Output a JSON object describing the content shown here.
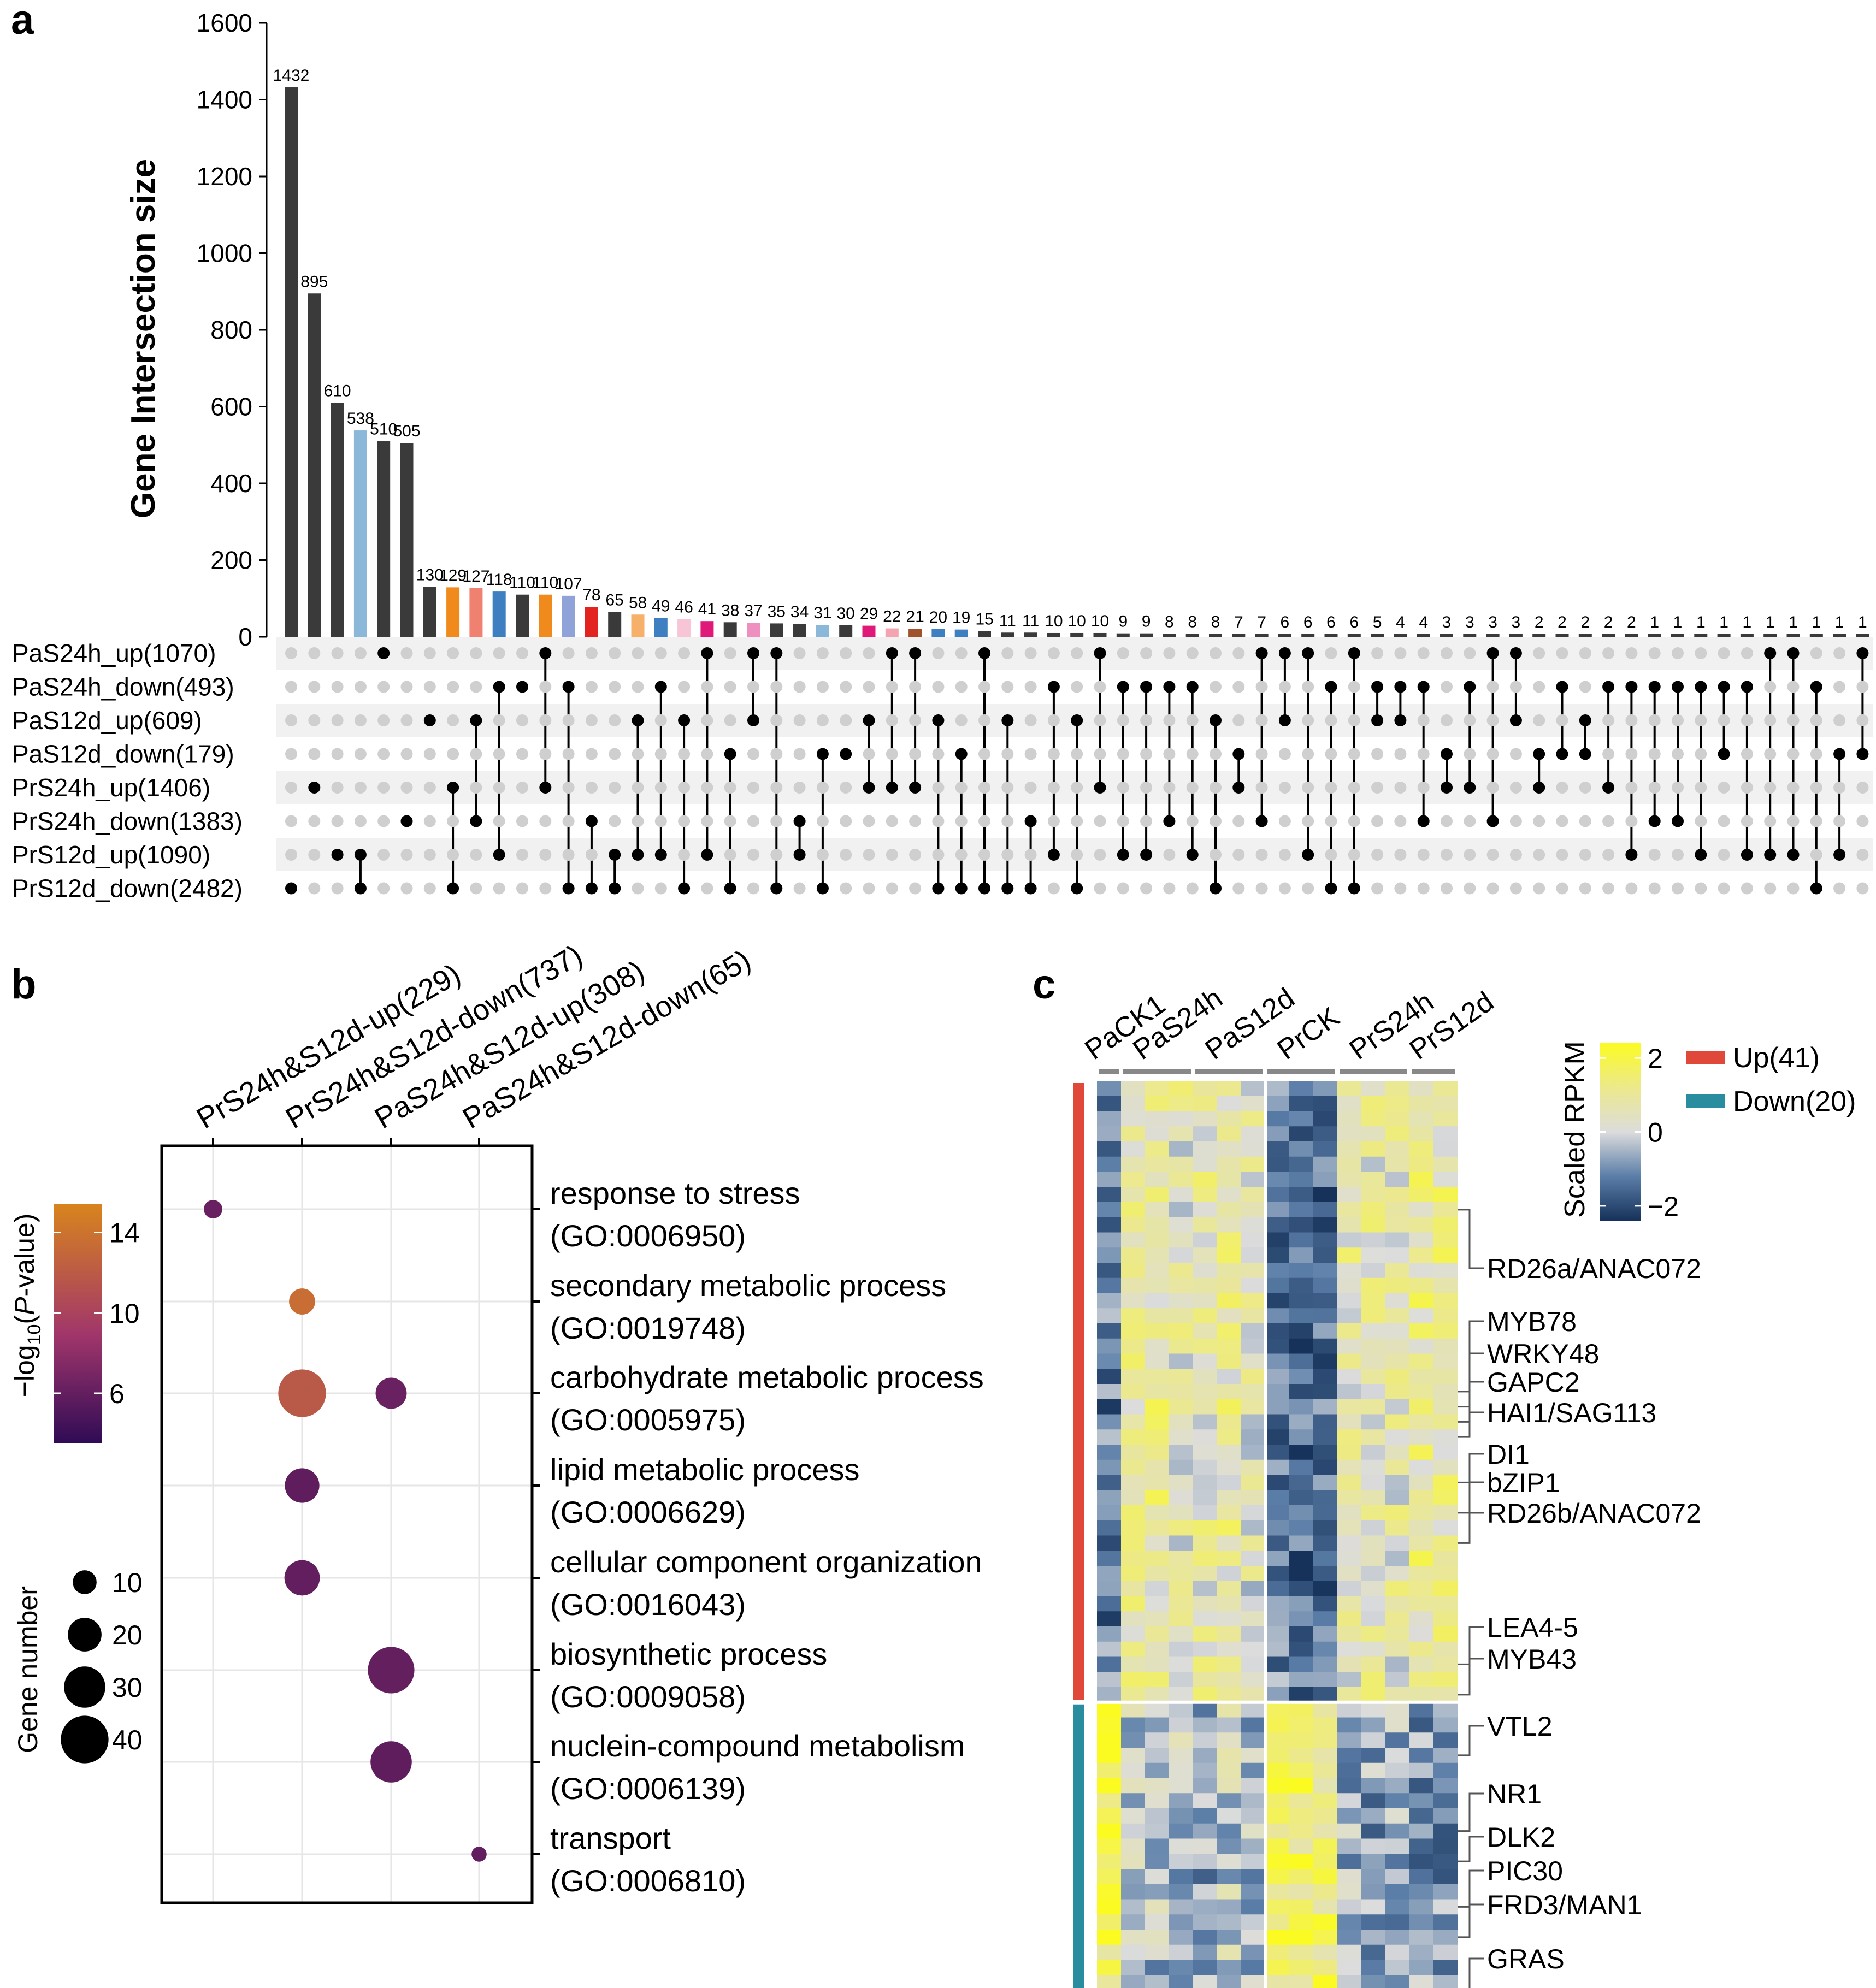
{
  "panels": {
    "a": "a",
    "b": "b",
    "c": "c"
  },
  "chart_data": [
    {
      "type": "bar",
      "subtype": "upset",
      "ylabel": "Gene Intersection size",
      "ylim": [
        0,
        1600
      ],
      "yticks": [
        0,
        200,
        400,
        600,
        800,
        1000,
        1200,
        1400,
        1600
      ],
      "sets": [
        "PaS24h_up(1070)",
        "PaS24h_down(493)",
        "PaS12d_up(609)",
        "PaS12d_down(179)",
        "PrS24h_up(1406)",
        "PrS24h_down(1383)",
        "PrS12d_up(1090)",
        "PrS12d_down(2482)"
      ],
      "values": [
        1432,
        895,
        610,
        538,
        510,
        505,
        130,
        129,
        127,
        118,
        110,
        110,
        107,
        78,
        65,
        58,
        49,
        46,
        41,
        38,
        37,
        35,
        34,
        31,
        30,
        29,
        22,
        21,
        20,
        19,
        15,
        11,
        11,
        10,
        10,
        10,
        9,
        9,
        8,
        8,
        8,
        7,
        7,
        6,
        6,
        6,
        6,
        5,
        4,
        4,
        3,
        3,
        3,
        3,
        2,
        2,
        2,
        2,
        2,
        1,
        1,
        1,
        1,
        1,
        1,
        1,
        1,
        1,
        1,
        1
      ],
      "bar_colors": [
        "#3a3a3a",
        "#3a3a3a",
        "#3a3a3a",
        "#8bb8d8",
        "#3a3a3a",
        "#3a3a3a",
        "#3a3a3a",
        "#f08a1c",
        "#f08070",
        "#3d7fc0",
        "#3a3a3a",
        "#f08a1c",
        "#8fa3d9",
        "#e2231f",
        "#3a3a3a",
        "#f6b06a",
        "#3d7fc0",
        "#f7c5d6",
        "#e0187a",
        "#3a3a3a",
        "#ee8fc0",
        "#3a3a3a",
        "#3a3a3a",
        "#8bb8d8",
        "#3a3a3a",
        "#e0187a",
        "#f4a4b0",
        "#a0522d",
        "#3d7fc0",
        "#3d7fc0",
        "#3a3a3a"
      ],
      "default_bar_color": "#3a3a3a",
      "memberships": [
        [
          7
        ],
        [
          4
        ],
        [
          6
        ],
        [
          6,
          7
        ],
        [
          0
        ],
        [
          5
        ],
        [
          2
        ],
        [
          4,
          7
        ],
        [
          2,
          5
        ],
        [
          1,
          6
        ],
        [
          1
        ],
        [
          0,
          4
        ],
        [
          1,
          7
        ],
        [
          5,
          7
        ],
        [
          6,
          7
        ],
        [
          2,
          6
        ],
        [
          1,
          6
        ],
        [
          2,
          7
        ],
        [
          0,
          6
        ],
        [
          3,
          7
        ],
        [
          0,
          2
        ],
        [
          0,
          7
        ],
        [
          5,
          6
        ],
        [
          3,
          7
        ],
        [
          3
        ],
        [
          2,
          4
        ],
        [
          0,
          4
        ],
        [
          0,
          4
        ],
        [
          2,
          7
        ],
        [
          3,
          7
        ],
        [
          0,
          7
        ],
        [
          2,
          7
        ],
        [
          5,
          7
        ],
        [
          1,
          6
        ],
        [
          2,
          7
        ],
        [
          0,
          4
        ],
        [
          1,
          6
        ],
        [
          1,
          6
        ],
        [
          1,
          5
        ],
        [
          1,
          6
        ],
        [
          2,
          7
        ],
        [
          3,
          4
        ],
        [
          0,
          5
        ],
        [
          0,
          2
        ],
        [
          0,
          6
        ],
        [
          1,
          7
        ],
        [
          0,
          7
        ],
        [
          1,
          2
        ],
        [
          1,
          2
        ],
        [
          1,
          5
        ],
        [
          3,
          4
        ],
        [
          1,
          4
        ],
        [
          0,
          5
        ],
        [
          0,
          2
        ],
        [
          3,
          4
        ],
        [
          1,
          3
        ],
        [
          2,
          3
        ],
        [
          1,
          4
        ],
        [
          1,
          6
        ],
        [
          1,
          5
        ],
        [
          1,
          5
        ],
        [
          1,
          6
        ],
        [
          1,
          3
        ],
        [
          1,
          6
        ],
        [
          0,
          6
        ],
        [
          0,
          6
        ],
        [
          1,
          7
        ],
        [
          3,
          6
        ],
        [
          0,
          3
        ],
        [
          1,
          6
        ]
      ]
    },
    {
      "type": "scatter",
      "subtype": "bubble",
      "columns": [
        "PrS24h&S12d-up(229)",
        "PrS24h&S12d-down(737)",
        "PaS24h&S12d-up(308)",
        "PaS24h&S12d-down(65)"
      ],
      "terms": [
        {
          "name": "response to stress",
          "go": "(GO:0006950)"
        },
        {
          "name": "secondary metabolic process",
          "go": "(GO:0019748)"
        },
        {
          "name": "carbohydrate metabolic process",
          "go": "(GO:0005975)"
        },
        {
          "name": "lipid metabolic process",
          "go": "(GO:0006629)"
        },
        {
          "name": "cellular component organization",
          "go": "(GO:0016043)"
        },
        {
          "name": "biosynthetic process",
          "go": "(GO:0009058)"
        },
        {
          "name": "nuclein-compound metabolism",
          "go": "(GO:0006139)"
        },
        {
          "name": "transport",
          "go": "(GO:0006810)"
        }
      ],
      "points": [
        {
          "term": 0,
          "column": 0,
          "neglog10p": 6.2,
          "genes": 6
        },
        {
          "term": 1,
          "column": 1,
          "neglog10p": 13.5,
          "genes": 12
        },
        {
          "term": 2,
          "column": 1,
          "neglog10p": 11.8,
          "genes": 40
        },
        {
          "term": 2,
          "column": 2,
          "neglog10p": 6.3,
          "genes": 17
        },
        {
          "term": 3,
          "column": 1,
          "neglog10p": 5.8,
          "genes": 21
        },
        {
          "term": 4,
          "column": 1,
          "neglog10p": 5.9,
          "genes": 22
        },
        {
          "term": 5,
          "column": 2,
          "neglog10p": 6.0,
          "genes": 38
        },
        {
          "term": 6,
          "column": 2,
          "neglog10p": 5.8,
          "genes": 30
        },
        {
          "term": 7,
          "column": 3,
          "neglog10p": 5.9,
          "genes": 4
        }
      ],
      "color_legend": {
        "title_pre": "−log",
        "title_sub": "10",
        "title_mid": "(",
        "title_italic": "P",
        "title_post": "-value)",
        "ticks": [
          14,
          10,
          6
        ],
        "range": [
          3.5,
          15.4
        ]
      },
      "size_legend": {
        "title": "Gene number",
        "ticks": [
          10,
          20,
          30,
          40
        ]
      }
    },
    {
      "type": "heatmap",
      "column_groups": [
        "PaCK1",
        "PaS24h",
        "PaS12d",
        "PrCK",
        "PrS24h",
        "PrS12d"
      ],
      "legend": {
        "title": "Scaled RPKM",
        "ticks": [
          "2",
          "0",
          "−2"
        ],
        "range": [
          -2.4,
          2.4
        ]
      },
      "row_groups": [
        {
          "label": "Up(41)",
          "color": "#e0493a",
          "rows": 41
        },
        {
          "label": "Down(20)",
          "color": "#2a8c9f",
          "rows": 20
        }
      ],
      "gene_labels": [
        {
          "name": "RD26a/ANAC072",
          "row": 8
        },
        {
          "name": "MYB78",
          "row": 20
        },
        {
          "name": "WRKY48",
          "row": 21
        },
        {
          "name": "GAPC2",
          "row": 22
        },
        {
          "name": "HAI1/SAG113",
          "row": 23
        },
        {
          "name": "DI1",
          "row": 26
        },
        {
          "name": "bZIP1",
          "row": 28
        },
        {
          "name": "RD26b/ANAC072",
          "row": 30
        },
        {
          "name": "LEA4-5",
          "row": 38
        },
        {
          "name": "MYB43",
          "row": 40
        },
        {
          "name": "VTL2",
          "row": 44
        },
        {
          "name": "NR1",
          "row": 49
        },
        {
          "name": "DLK2",
          "row": 51
        },
        {
          "name": "PIC30",
          "row": 54
        },
        {
          "name": "FRD3/MAN1",
          "row": 56
        },
        {
          "name": "GRAS",
          "row": 60
        }
      ]
    }
  ]
}
